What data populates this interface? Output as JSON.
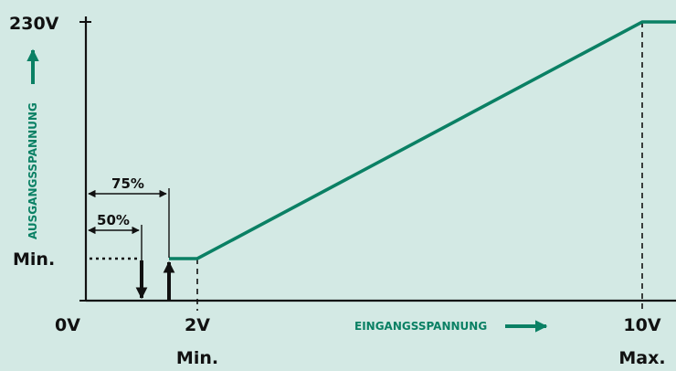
{
  "chart_data": {
    "type": "line",
    "x_unit": "V",
    "x": [
      0,
      2,
      10,
      10.1
    ],
    "y": [
      "Min.",
      "Min.",
      "230V",
      "230V"
    ],
    "x_ticks": [
      {
        "value": 0,
        "label": "0V",
        "sublabel": ""
      },
      {
        "value": 2,
        "label": "2V",
        "sublabel": "Min."
      },
      {
        "value": 10,
        "label": "10V",
        "sublabel": "Max."
      }
    ],
    "y_ticks": [
      {
        "level": "max",
        "label": "230V"
      },
      {
        "level": "min",
        "label": "Min."
      }
    ],
    "xlabel": "EINGANGSSPANNUNG",
    "ylabel": "AUSGANGSSPANNUNG",
    "ylim": [
      "",
      "230V"
    ],
    "grid": false,
    "line_color": "#0a8064",
    "annotations": [
      {
        "label": "50%",
        "x": 1.0,
        "direction": "down"
      },
      {
        "label": "75%",
        "x": 1.5,
        "direction": "up"
      }
    ]
  }
}
